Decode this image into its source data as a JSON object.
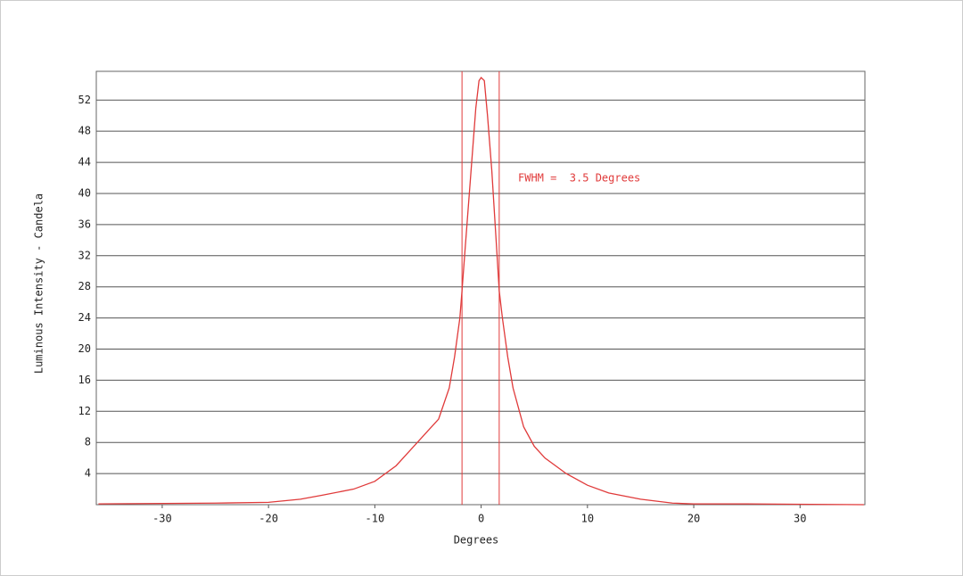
{
  "chart_data": {
    "type": "line",
    "xlabel": "Degrees",
    "ylabel": "Luminous Intensity - Candela",
    "annotation": "FWHM =  3.5 Degrees",
    "x": [
      -36,
      -25,
      -20,
      -17,
      -15,
      -12,
      -10,
      -8,
      -6,
      -5,
      -4,
      -3,
      -2.5,
      -2,
      -1.8,
      -1.5,
      -1,
      -0.5,
      -0.2,
      0,
      0.3,
      0.6,
      1,
      1.5,
      1.7,
      2,
      2.5,
      3,
      4,
      5,
      6,
      8,
      10,
      12,
      15,
      18,
      20,
      25,
      36
    ],
    "series": [
      {
        "color": "#e03a3a",
        "values": [
          0.1,
          0.2,
          0.3,
          0.7,
          1.2,
          2,
          3,
          5,
          8,
          9.5,
          11,
          15,
          19,
          24,
          27.5,
          33,
          42,
          51,
          54.5,
          54.9,
          54.5,
          50,
          43,
          32,
          27.5,
          24,
          19,
          15,
          10,
          7.5,
          6,
          4,
          2.5,
          1.5,
          0.7,
          0.2,
          0.1,
          0.1,
          0
        ]
      }
    ],
    "vlines": [
      -1.8,
      1.7
    ],
    "xlim": [
      -36.2,
      36.1
    ],
    "ylim": [
      0,
      55.7
    ],
    "xticks": [
      -30,
      -20,
      -10,
      0,
      10,
      20,
      30
    ],
    "yticks": [
      4,
      8,
      12,
      16,
      20,
      24,
      28,
      32,
      36,
      40,
      44,
      48,
      52
    ],
    "grid": true
  }
}
